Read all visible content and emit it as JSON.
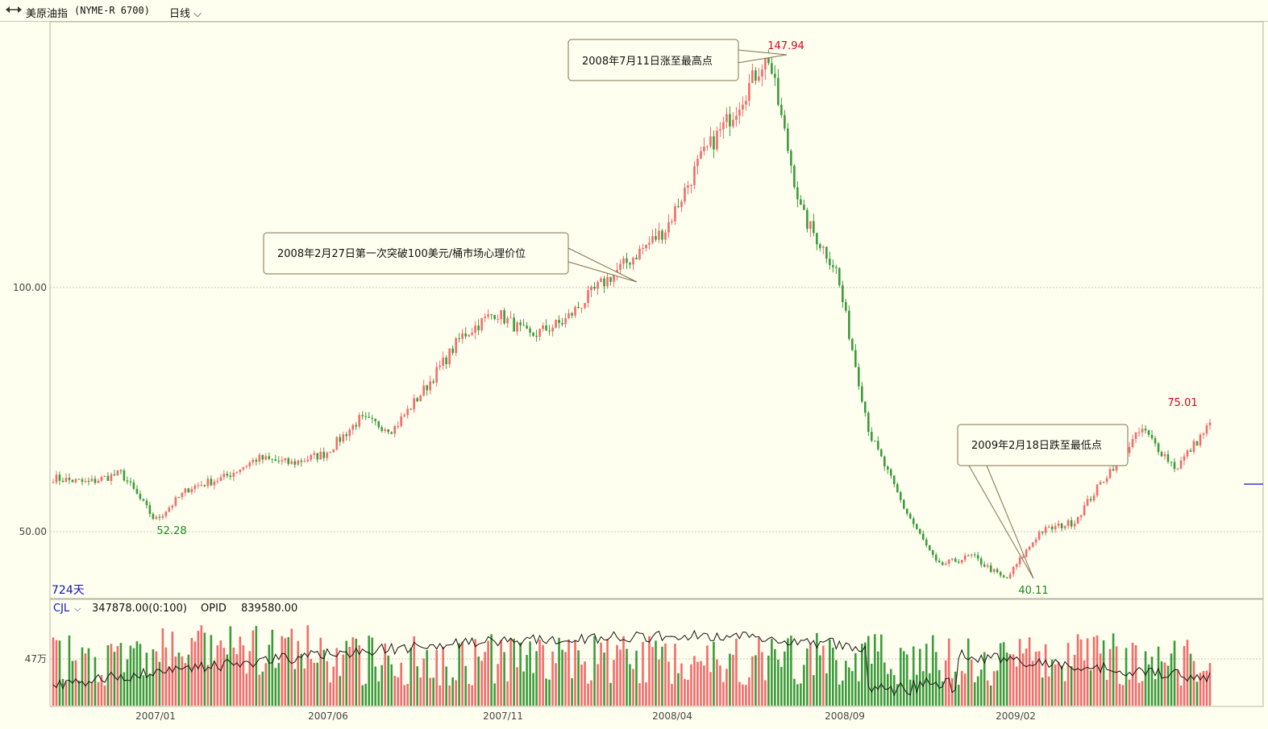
{
  "header": {
    "icon": "chart-toggle-icon",
    "instrument": "美原油指",
    "code": "(NYME-R 6700)",
    "period": "日线",
    "period_icon": "chevron-down-icon"
  },
  "main_panel": {
    "days_label": "724天",
    "y_ticks": [
      "100.00",
      "50.00"
    ]
  },
  "sub_panel": {
    "indicator": "CJL",
    "volume_text": "347878.00(0:100)",
    "opid_label": "OPID",
    "opid_value": "839580.00",
    "y_tick": "47万"
  },
  "x_ticks": [
    "2007/01",
    "2007/06",
    "2007/11",
    "2008/04",
    "2008/09",
    "2009/02"
  ],
  "annotations": [
    {
      "text": "2008年7月11日涨至最高点"
    },
    {
      "text": "2008年2月27日第一次突破100美元/桶市场心理价位"
    },
    {
      "text": "2009年2月18日跌至最低点"
    }
  ],
  "extreme_labels": [
    {
      "text": "147.94",
      "color": "#e0001b"
    },
    {
      "text": "52.28",
      "color": "#1a8a1a"
    },
    {
      "text": "40.11",
      "color": "#1a8a1a"
    },
    {
      "text": "75.01",
      "color": "#e0001b"
    }
  ],
  "colors": {
    "up": "#f36b6b",
    "down": "#3c9b3c",
    "background": "#fffff0",
    "label_blue": "#1010c0"
  },
  "chart_data": {
    "type": "candlestick",
    "x_date_ticks": [
      "2007/01",
      "2007/06",
      "2007/11",
      "2008/04",
      "2008/09",
      "2009/02"
    ],
    "price_keypoints": [
      {
        "date": "2006-10",
        "price": 61
      },
      {
        "date": "2006-11",
        "price": 60
      },
      {
        "date": "2006-12",
        "price": 62
      },
      {
        "date": "2007-01",
        "price": 52.28
      },
      {
        "date": "2007-02",
        "price": 59
      },
      {
        "date": "2007-03",
        "price": 61
      },
      {
        "date": "2007-04",
        "price": 65
      },
      {
        "date": "2007-05",
        "price": 64
      },
      {
        "date": "2007-06",
        "price": 66
      },
      {
        "date": "2007-07",
        "price": 73
      },
      {
        "date": "2007-08",
        "price": 71
      },
      {
        "date": "2007-09",
        "price": 80
      },
      {
        "date": "2007-10",
        "price": 90
      },
      {
        "date": "2007-11",
        "price": 95
      },
      {
        "date": "2007-12",
        "price": 90
      },
      {
        "date": "2008-01",
        "price": 93
      },
      {
        "date": "2008-02",
        "price": 100
      },
      {
        "date": "2008-03",
        "price": 106
      },
      {
        "date": "2008-04",
        "price": 112
      },
      {
        "date": "2008-05",
        "price": 126
      },
      {
        "date": "2008-06",
        "price": 136
      },
      {
        "date": "2008-07",
        "price": 147.94
      },
      {
        "date": "2008-08",
        "price": 115
      },
      {
        "date": "2008-09",
        "price": 104
      },
      {
        "date": "2008-10",
        "price": 70
      },
      {
        "date": "2008-11",
        "price": 55
      },
      {
        "date": "2008-12",
        "price": 43
      },
      {
        "date": "2009-01",
        "price": 45
      },
      {
        "date": "2009-02",
        "price": 40.11
      },
      {
        "date": "2009-03",
        "price": 50
      },
      {
        "date": "2009-04",
        "price": 52
      },
      {
        "date": "2009-05",
        "price": 62
      },
      {
        "date": "2009-06",
        "price": 71
      },
      {
        "date": "2009-07",
        "price": 63
      },
      {
        "date": "2009-08",
        "price": 72
      }
    ],
    "highlighted_points": [
      {
        "date": "2007-01",
        "price": 52.28
      },
      {
        "date": "2008-07-11",
        "price": 147.94
      },
      {
        "date": "2009-02-18",
        "price": 40.11
      },
      {
        "date": "2009-06",
        "price": 75.01
      }
    ],
    "y_ticks": [
      100,
      50
    ],
    "volume": {
      "y_tick": "47万",
      "last_value": 347878,
      "opid": 839580
    },
    "grid": "horizontal dotted at y ticks",
    "legend": "none"
  }
}
